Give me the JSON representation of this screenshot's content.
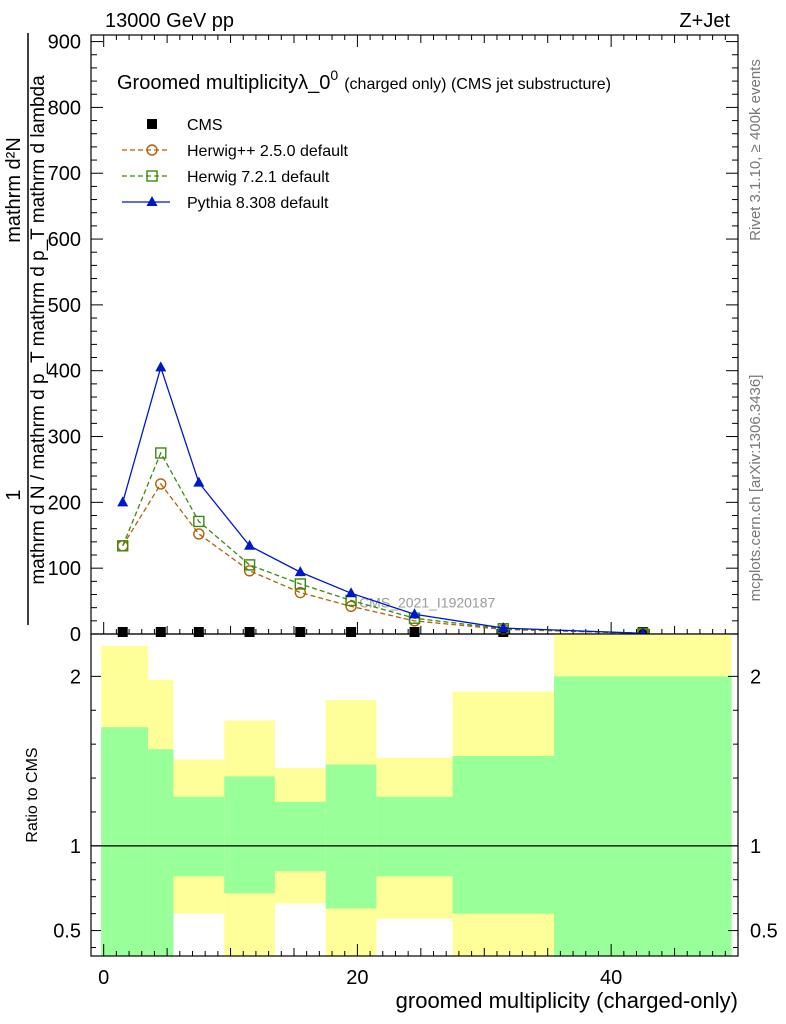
{
  "header": {
    "left": "13000 GeV pp",
    "right": "Z+Jet"
  },
  "side": {
    "rivet": "Rivet 3.1.10, ≥ 400k events",
    "mcplots": "mcplots.cern.ch [arXiv:1306.3436]"
  },
  "watermark": "CMS_2021_I1920187",
  "colors": {
    "cms": "#000000",
    "herwig25": "#b45f06",
    "herwig72": "#3a8a0e",
    "pythia": "#0018c8",
    "band_green": "#99ff99",
    "band_yellow": "#ffff99"
  },
  "chart_data": [
    {
      "type": "line",
      "title": "Groomed multiplicityλ_0",
      "title_sup": "0",
      "title_suffix": "(charged only) (CMS jet substructure)",
      "ylabel_lines": [
        "1",
        "mathrm d N / mathrm d p_T mathrm d p_T mathrm d lambda",
        "mathrm d²N"
      ],
      "ylim": [
        0,
        910
      ],
      "xlim": [
        -1,
        50
      ],
      "yticks": [
        0,
        100,
        200,
        300,
        400,
        500,
        600,
        700,
        800,
        900
      ],
      "grid": false,
      "legend_position": "top-left",
      "x": [
        1.5,
        4.5,
        7.5,
        11.5,
        15.5,
        19.5,
        24.5,
        31.5,
        42.5
      ],
      "series": [
        {
          "name": "CMS",
          "marker": "filled-square",
          "values": [
            0,
            0,
            0,
            0,
            0,
            0,
            0,
            0,
            0
          ]
        },
        {
          "name": "Herwig++ 2.5.0 default",
          "marker": "open-circle",
          "dash": true,
          "values": [
            134,
            228,
            152,
            96,
            63,
            42,
            20,
            7,
            1
          ]
        },
        {
          "name": "Herwig 7.2.1 default",
          "marker": "open-square",
          "dash": true,
          "values": [
            134,
            275,
            171,
            105,
            76,
            51,
            24,
            8,
            1
          ]
        },
        {
          "name": "Pythia 8.308 default",
          "marker": "filled-triangle",
          "dash": false,
          "values": [
            200,
            405,
            230,
            134,
            94,
            62,
            30,
            9,
            1
          ]
        }
      ]
    },
    {
      "type": "area",
      "ylabel": "Ratio to CMS",
      "xlabel": "groomed multiplicity (charged-only)",
      "ylim": [
        0.35,
        2.25
      ],
      "xlim": [
        -1,
        50
      ],
      "xticks": [
        0,
        20,
        40
      ],
      "yticks": [
        0.5,
        1,
        2
      ],
      "reference": 1,
      "bins": [
        {
          "x0": -0.2,
          "x1": 3.5,
          "green_lo": 0.35,
          "green_hi": 1.7,
          "yellow_lo": 0.35,
          "yellow_hi": 2.18
        },
        {
          "x0": 3.5,
          "x1": 5.5,
          "green_lo": 0.35,
          "green_hi": 1.57,
          "yellow_lo": 0.35,
          "yellow_hi": 1.98
        },
        {
          "x0": 5.5,
          "x1": 9.5,
          "green_lo": 0.82,
          "green_hi": 1.29,
          "yellow_lo": 0.6,
          "yellow_hi": 1.51
        },
        {
          "x0": 9.5,
          "x1": 13.5,
          "green_lo": 0.72,
          "green_hi": 1.41,
          "yellow_lo": 0.35,
          "yellow_hi": 1.74
        },
        {
          "x0": 13.5,
          "x1": 17.5,
          "green_lo": 0.85,
          "green_hi": 1.26,
          "yellow_lo": 0.66,
          "yellow_hi": 1.46
        },
        {
          "x0": 17.5,
          "x1": 21.5,
          "green_lo": 0.63,
          "green_hi": 1.48,
          "yellow_lo": 0.35,
          "yellow_hi": 1.86
        },
        {
          "x0": 21.5,
          "x1": 27.5,
          "green_lo": 0.82,
          "green_hi": 1.29,
          "yellow_lo": 0.57,
          "yellow_hi": 1.52
        },
        {
          "x0": 27.5,
          "x1": 35.5,
          "green_lo": 0.6,
          "green_hi": 1.53,
          "yellow_lo": 0.35,
          "yellow_hi": 1.91
        },
        {
          "x0": 35.5,
          "x1": 49.5,
          "green_lo": 0.35,
          "green_hi": 2.0,
          "yellow_lo": 0.35,
          "yellow_hi": 2.25
        }
      ]
    }
  ]
}
